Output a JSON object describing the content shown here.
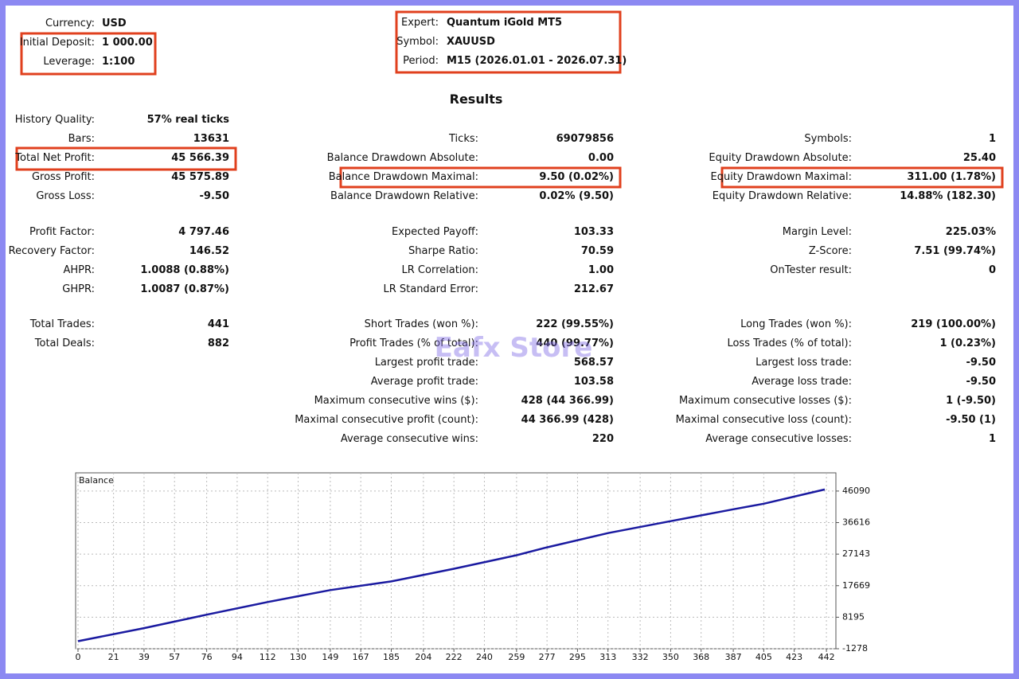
{
  "header": {
    "left": [
      {
        "label": "Currency:",
        "value": "USD"
      },
      {
        "label": "Initial Deposit:",
        "value": "1 000.00"
      },
      {
        "label": "Leverage:",
        "value": "1:100"
      }
    ],
    "center": [
      {
        "label": "Expert:",
        "value": "Quantum iGold MT5"
      },
      {
        "label": "Symbol:",
        "value": "XAUUSD"
      },
      {
        "label": "Period:",
        "value": "M15 (2026.01.01 - 2026.07.31)"
      }
    ]
  },
  "results": {
    "title": "Results",
    "sections": [
      [
        [
          {
            "label": "History Quality:",
            "value": "57% real ticks"
          },
          null,
          null
        ],
        [
          {
            "label": "Bars:",
            "value": "13631"
          },
          {
            "label": "Ticks:",
            "value": "69079856"
          },
          {
            "label": "Symbols:",
            "value": "1"
          }
        ],
        [
          {
            "label": "Total Net Profit:",
            "value": "45 566.39"
          },
          {
            "label": "Balance Drawdown Absolute:",
            "value": "0.00"
          },
          {
            "label": "Equity Drawdown Absolute:",
            "value": "25.40"
          }
        ],
        [
          {
            "label": "Gross Profit:",
            "value": "45 575.89"
          },
          {
            "label": "Balance Drawdown Maximal:",
            "value": "9.50 (0.02%)"
          },
          {
            "label": "Equity Drawdown Maximal:",
            "value": "311.00 (1.78%)"
          }
        ],
        [
          {
            "label": "Gross Loss:",
            "value": "-9.50"
          },
          {
            "label": "Balance Drawdown Relative:",
            "value": "0.02% (9.50)"
          },
          {
            "label": "Equity Drawdown Relative:",
            "value": "14.88% (182.30)"
          }
        ]
      ],
      [
        [
          {
            "label": "Profit Factor:",
            "value": "4 797.46"
          },
          {
            "label": "Expected Payoff:",
            "value": "103.33"
          },
          {
            "label": "Margin Level:",
            "value": "225.03%"
          }
        ],
        [
          {
            "label": "Recovery Factor:",
            "value": "146.52"
          },
          {
            "label": "Sharpe Ratio:",
            "value": "70.59"
          },
          {
            "label": "Z-Score:",
            "value": "7.51 (99.74%)"
          }
        ],
        [
          {
            "label": "AHPR:",
            "value": "1.0088 (0.88%)"
          },
          {
            "label": "LR Correlation:",
            "value": "1.00"
          },
          {
            "label": "OnTester result:",
            "value": "0"
          }
        ],
        [
          {
            "label": "GHPR:",
            "value": "1.0087 (0.87%)"
          },
          {
            "label": "LR Standard Error:",
            "value": "212.67"
          },
          null
        ]
      ],
      [
        [
          {
            "label": "Total Trades:",
            "value": "441"
          },
          {
            "label": "Short Trades (won %):",
            "value": "222 (99.55%)"
          },
          {
            "label": "Long Trades (won %):",
            "value": "219 (100.00%)"
          }
        ],
        [
          {
            "label": "Total Deals:",
            "value": "882"
          },
          {
            "label": "Profit Trades (% of total):",
            "value": "440 (99.77%)"
          },
          {
            "label": "Loss Trades (% of total):",
            "value": "1 (0.23%)"
          }
        ],
        [
          null,
          {
            "label": "Largest profit trade:",
            "value": "568.57"
          },
          {
            "label": "Largest loss trade:",
            "value": "-9.50"
          }
        ],
        [
          null,
          {
            "label": "Average profit trade:",
            "value": "103.58"
          },
          {
            "label": "Average loss trade:",
            "value": "-9.50"
          }
        ],
        [
          null,
          {
            "label": "Maximum consecutive wins ($):",
            "value": "428 (44 366.99)"
          },
          {
            "label": "Maximum consecutive losses ($):",
            "value": "1 (-9.50)"
          }
        ],
        [
          null,
          {
            "label": "Maximal consecutive profit (count):",
            "value": "44 366.99 (428)"
          },
          {
            "label": "Maximal consecutive loss (count):",
            "value": "-9.50 (1)"
          }
        ],
        [
          null,
          {
            "label": "Average consecutive wins:",
            "value": "220"
          },
          {
            "label": "Average consecutive losses:",
            "value": "1"
          }
        ]
      ]
    ]
  },
  "watermark": "Eafx Store",
  "balance_chart": {
    "type": "line",
    "title": "Balance",
    "color": "#1a1aa0",
    "grid": true,
    "x": [
      0,
      39,
      76,
      112,
      149,
      185,
      222,
      259,
      277,
      313,
      350,
      387,
      405,
      441
    ],
    "values": [
      1000,
      4911,
      8958,
      12766,
      16337,
      18955,
      22764,
      26810,
      29191,
      33475,
      37046,
      40617,
      42283,
      46566
    ],
    "xlim": [
      -1.4,
      447.6
    ],
    "ylim": [
      -1278,
      51565
    ],
    "xticks": [
      0,
      21,
      39,
      57,
      76,
      94,
      112,
      130,
      149,
      167,
      185,
      204,
      222,
      240,
      259,
      277,
      295,
      313,
      332,
      350,
      368,
      387,
      405,
      423,
      442
    ],
    "yticks": [
      -1278,
      8195,
      17669,
      27143,
      36616,
      46090
    ]
  }
}
